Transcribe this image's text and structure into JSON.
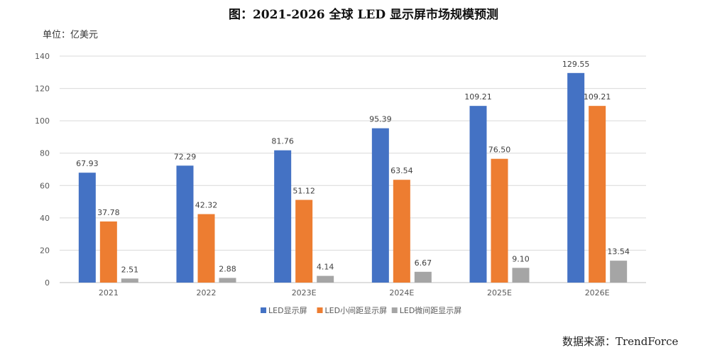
{
  "title": "图：2021-2026 全球 LED 显示屏市场规模预测",
  "unit_label": "单位：亿美元",
  "source_label": "数据来源：TrendForce",
  "colors": {
    "s1": "#4472C4",
    "s2": "#ED7D31",
    "s3": "#A5A5A5",
    "grid": "#D9D9D9",
    "axis": "#BFBFBF"
  },
  "chart_data": {
    "type": "bar",
    "categories": [
      "2021",
      "2022",
      "2023E",
      "2024E",
      "2025E",
      "2026E"
    ],
    "series": [
      {
        "name": "LED显示屏",
        "values": [
          67.93,
          72.29,
          81.76,
          95.39,
          109.21,
          129.55
        ],
        "labels": [
          "67.93",
          "72.29",
          "81.76",
          "95.39",
          "109.21",
          "129.55"
        ]
      },
      {
        "name": "LED小间距显示屏",
        "values": [
          37.78,
          42.32,
          51.12,
          63.54,
          76.5,
          109.21
        ],
        "labels": [
          "37.78",
          "42.32",
          "51.12",
          "63.54",
          "76.50",
          "109.21"
        ]
      },
      {
        "name": "LED微间距显示屏",
        "values": [
          2.51,
          2.88,
          4.14,
          6.67,
          9.1,
          13.54
        ],
        "labels": [
          "2.51",
          "2.88",
          "4.14",
          "6.67",
          "9.10",
          "13.54"
        ]
      }
    ],
    "yticks": [
      "0",
      "20",
      "40",
      "60",
      "80",
      "100",
      "120",
      "140"
    ],
    "ylim": [
      0,
      140
    ],
    "grid": true,
    "legend_position": "bottom"
  }
}
